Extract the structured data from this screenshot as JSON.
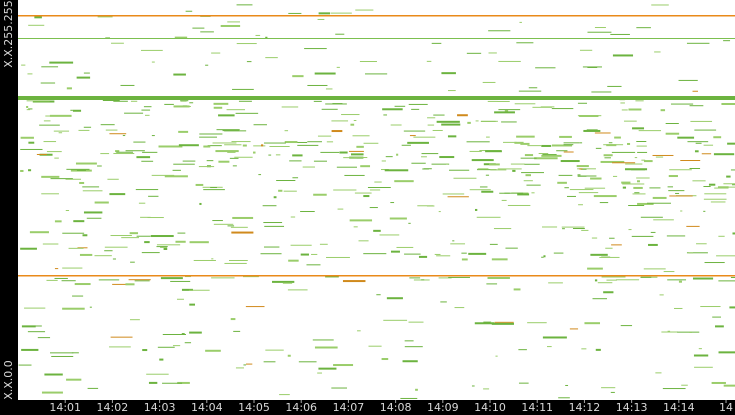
{
  "chart_data": {
    "type": "traffic-timeline",
    "y_top_label": "X.X.255.255",
    "y_bottom_label": "X.X.0.0",
    "xlim": [
      0,
      15.19
    ],
    "xticks": [
      {
        "value": 1,
        "label": "14:01"
      },
      {
        "value": 2,
        "label": "14:02"
      },
      {
        "value": 3,
        "label": "14:03"
      },
      {
        "value": 4,
        "label": "14:04"
      },
      {
        "value": 5,
        "label": "14:05"
      },
      {
        "value": 6,
        "label": "14:06"
      },
      {
        "value": 7,
        "label": "14:07"
      },
      {
        "value": 8,
        "label": "14:08"
      },
      {
        "value": 9,
        "label": "14:09"
      },
      {
        "value": 10,
        "label": "14:10"
      },
      {
        "value": 11,
        "label": "14:11"
      },
      {
        "value": 12,
        "label": "14:12"
      },
      {
        "value": 13,
        "label": "14:13"
      },
      {
        "value": 14,
        "label": "14:14"
      },
      {
        "value": 15,
        "label": "14"
      }
    ]
  }
}
